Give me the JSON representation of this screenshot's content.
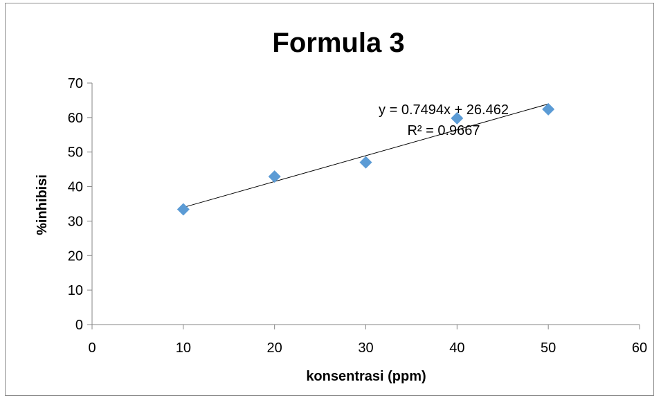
{
  "chart_data": {
    "type": "scatter",
    "title": "Formula 3",
    "xlabel": "konsentrasi (ppm)",
    "ylabel": "%inhibisi",
    "xlim": [
      0,
      60
    ],
    "ylim": [
      0,
      70
    ],
    "xticks": [
      0,
      10,
      20,
      30,
      40,
      50,
      60
    ],
    "yticks": [
      0,
      10,
      20,
      30,
      40,
      50,
      60,
      70
    ],
    "grid": false,
    "legend": "none",
    "series": [
      {
        "x": [
          10,
          20,
          30,
          40,
          50
        ],
        "y": [
          33.4,
          42.9,
          47.0,
          59.8,
          62.4
        ],
        "marker": "diamond",
        "color": "#5b9bd5"
      }
    ],
    "trendline": {
      "slope": 0.7494,
      "intercept": 26.462,
      "x_range": [
        10,
        50
      ],
      "color": "#000000",
      "equation": "y = 0.7494x + 26.462",
      "r_squared": "R² = 0.9667"
    }
  }
}
